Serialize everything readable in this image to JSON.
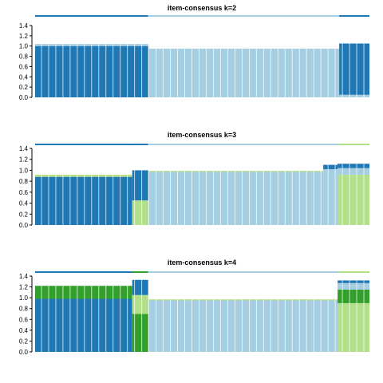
{
  "colors": {
    "cluster1": "#1f78b4",
    "cluster2": "#a6cee3",
    "cluster3": "#b2df8a",
    "cluster4": "#33a02c",
    "background": "#ffffff"
  },
  "chart_data": [
    {
      "type": "bar",
      "stacked": true,
      "title": "item-consensus k=2",
      "ylim": [
        0,
        1.4
      ],
      "yticks": [
        "0.0",
        "0.2",
        "0.4",
        "0.6",
        "0.8",
        "1.0",
        "1.2",
        "1.4"
      ],
      "grid": false,
      "legend": "none",
      "n_items": 420,
      "groups": [
        {
          "cluster": "cluster1",
          "count": 142,
          "segments": [
            {
              "color": "cluster1",
              "value": 1.0
            },
            {
              "color": "cluster2",
              "value": 0.04
            }
          ]
        },
        {
          "cluster": "cluster2",
          "count": 240,
          "segments": [
            {
              "color": "cluster2",
              "value": 0.95
            }
          ]
        },
        {
          "cluster": "cluster1",
          "count": 38,
          "segments": [
            {
              "color": "cluster2",
              "value": 0.05
            },
            {
              "color": "cluster1",
              "value": 1.0
            }
          ]
        }
      ]
    },
    {
      "type": "bar",
      "stacked": true,
      "title": "item-consensus k=3",
      "ylim": [
        0,
        1.4
      ],
      "yticks": [
        "0.0",
        "0.2",
        "0.4",
        "0.6",
        "0.8",
        "1.0",
        "1.2",
        "1.4"
      ],
      "grid": false,
      "legend": "none",
      "n_items": 420,
      "groups": [
        {
          "cluster": "cluster1",
          "count": 122,
          "segments": [
            {
              "color": "cluster1",
              "value": 0.88
            },
            {
              "color": "cluster3",
              "value": 0.04
            }
          ]
        },
        {
          "cluster": "cluster1",
          "count": 20,
          "segments": [
            {
              "color": "cluster3",
              "value": 0.45
            },
            {
              "color": "cluster1",
              "value": 0.55
            }
          ]
        },
        {
          "cluster": "cluster2",
          "count": 220,
          "segments": [
            {
              "color": "cluster2",
              "value": 0.97
            },
            {
              "color": "cluster3",
              "value": 0.02
            }
          ]
        },
        {
          "cluster": "cluster2",
          "count": 18,
          "segments": [
            {
              "color": "cluster2",
              "value": 1.02
            },
            {
              "color": "cluster1",
              "value": 0.08
            }
          ]
        },
        {
          "cluster": "cluster3",
          "count": 40,
          "segments": [
            {
              "color": "cluster3",
              "value": 0.92
            },
            {
              "color": "cluster2",
              "value": 0.12
            },
            {
              "color": "cluster1",
              "value": 0.08
            }
          ]
        }
      ]
    },
    {
      "type": "bar",
      "stacked": true,
      "title": "item-consensus k=4",
      "ylim": [
        0,
        1.4
      ],
      "yticks": [
        "0.0",
        "0.2",
        "0.4",
        "0.6",
        "0.8",
        "1.0",
        "1.2",
        "1.4"
      ],
      "grid": false,
      "legend": "none",
      "n_items": 420,
      "groups": [
        {
          "cluster": "cluster1",
          "count": 122,
          "segments": [
            {
              "color": "cluster1",
              "value": 0.98
            },
            {
              "color": "cluster4",
              "value": 0.24
            }
          ]
        },
        {
          "cluster": "cluster4",
          "count": 20,
          "segments": [
            {
              "color": "cluster4",
              "value": 0.7
            },
            {
              "color": "cluster3",
              "value": 0.35
            },
            {
              "color": "cluster1",
              "value": 0.28
            }
          ]
        },
        {
          "cluster": "cluster2",
          "count": 238,
          "segments": [
            {
              "color": "cluster2",
              "value": 0.95
            },
            {
              "color": "cluster3",
              "value": 0.02
            }
          ]
        },
        {
          "cluster": "cluster3",
          "count": 40,
          "segments": [
            {
              "color": "cluster3",
              "value": 0.9
            },
            {
              "color": "cluster4",
              "value": 0.25
            },
            {
              "color": "cluster2",
              "value": 0.12
            },
            {
              "color": "cluster1",
              "value": 0.05
            }
          ]
        }
      ]
    }
  ]
}
